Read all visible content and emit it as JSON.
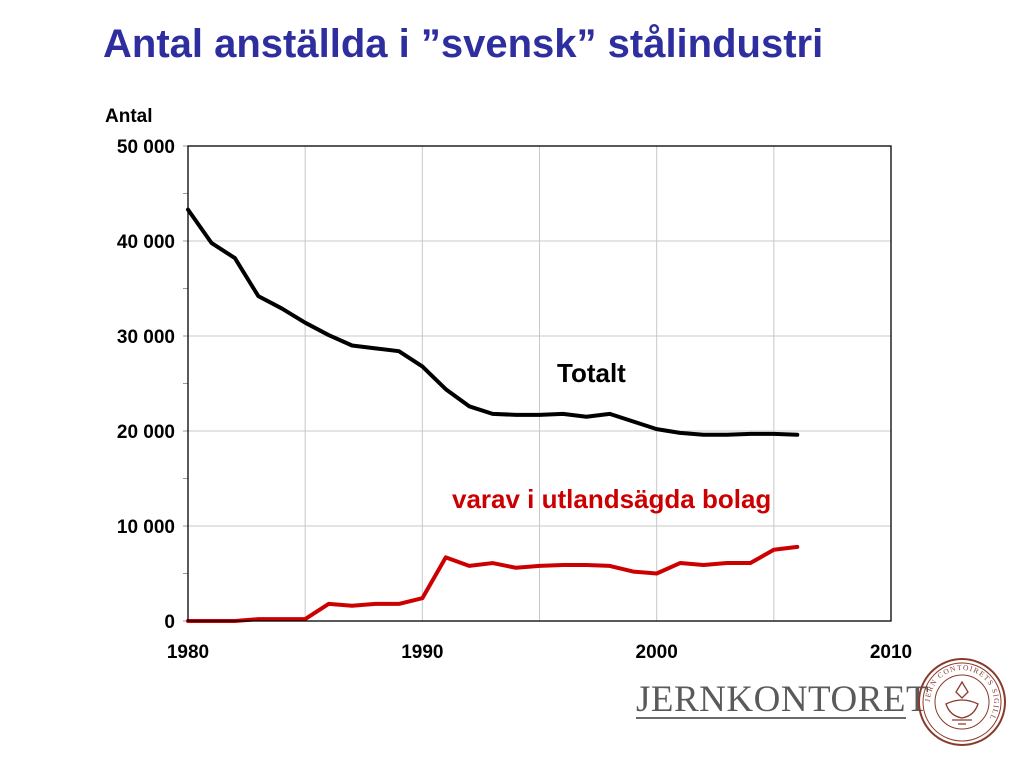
{
  "title": "Antal anställda i ”svensk” stålindustri",
  "chart_data": {
    "type": "line",
    "ylabel": "Antal",
    "xlabel": "",
    "xlim": [
      1980,
      2010
    ],
    "ylim": [
      0,
      50000
    ],
    "x_ticks": [
      1980,
      1990,
      2000,
      2010
    ],
    "x_tick_labels": [
      "1980",
      "1990",
      "2000",
      "2010"
    ],
    "y_ticks": [
      0,
      10000,
      20000,
      30000,
      40000,
      50000
    ],
    "y_tick_labels": [
      "0",
      "10 000",
      "20 000",
      "30 000",
      "40 000",
      "50 000"
    ],
    "grid": true,
    "series": [
      {
        "name": "Totalt",
        "color": "#000000",
        "x": [
          1980,
          1981,
          1982,
          1983,
          1984,
          1985,
          1986,
          1987,
          1988,
          1989,
          1990,
          1991,
          1992,
          1993,
          1994,
          1995,
          1996,
          1997,
          1998,
          1999,
          2000,
          2001,
          2002,
          2003,
          2004,
          2005,
          2006
        ],
        "values": [
          43300,
          39800,
          38200,
          34200,
          32900,
          31400,
          30100,
          29000,
          28700,
          28400,
          26800,
          24400,
          22600,
          21800,
          21700,
          21700,
          21800,
          21500,
          21800,
          21000,
          20200,
          19800,
          19600,
          19600,
          19700,
          19700,
          19600
        ]
      },
      {
        "name": "varav i utlandsägda bolag",
        "color": "#cc0000",
        "x": [
          1980,
          1981,
          1982,
          1983,
          1984,
          1985,
          1986,
          1987,
          1988,
          1989,
          1990,
          1991,
          1992,
          1993,
          1994,
          1995,
          1996,
          1997,
          1998,
          1999,
          2000,
          2001,
          2002,
          2003,
          2004,
          2005,
          2006
        ],
        "values": [
          0,
          0,
          0,
          200,
          200,
          200,
          1800,
          1600,
          1800,
          1800,
          2400,
          6700,
          5800,
          6100,
          5600,
          5800,
          5900,
          5900,
          5800,
          5200,
          5000,
          6100,
          5900,
          6100,
          6100,
          7500,
          7800
        ]
      }
    ]
  },
  "logo": {
    "text": "JERNKONTORET",
    "seal_text": "JERN CONTOIRETS SIGILL"
  }
}
